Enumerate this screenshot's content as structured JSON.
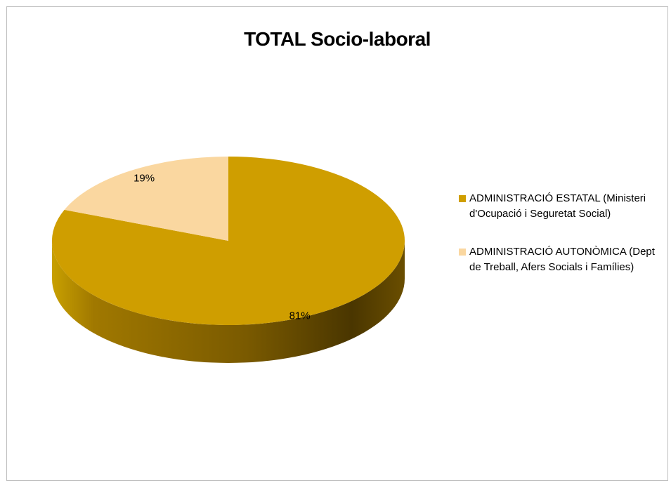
{
  "chart_data": {
    "type": "pie",
    "title": "TOTAL Socio-laboral",
    "slices": [
      {
        "label": "ADMINISTRACIÓ ESTATAL (Ministeri d'Ocupació i Seguretat Social)",
        "value": 81,
        "display": "81%",
        "color": "#CF9E00"
      },
      {
        "label": "ADMINISTRACIÓ AUTONÒMICA (Dept de Treball, Afers Socials i Famílies)",
        "value": 19,
        "display": "19%",
        "color": "#FAD7A0"
      }
    ],
    "legend_position": "right",
    "style": "3d"
  },
  "legend": {
    "items": [
      {
        "line1": "ADMINISTRACIÓ ESTATAL (Ministeri",
        "line2": "d'Ocupació i Seguretat Social)",
        "color": "#CF9E00"
      },
      {
        "line1": "ADMINISTRACIÓ AUTONÒMICA (Dept",
        "line2": "de Treball, Afers Socials i Famílies)",
        "color": "#FAD7A0"
      }
    ]
  }
}
